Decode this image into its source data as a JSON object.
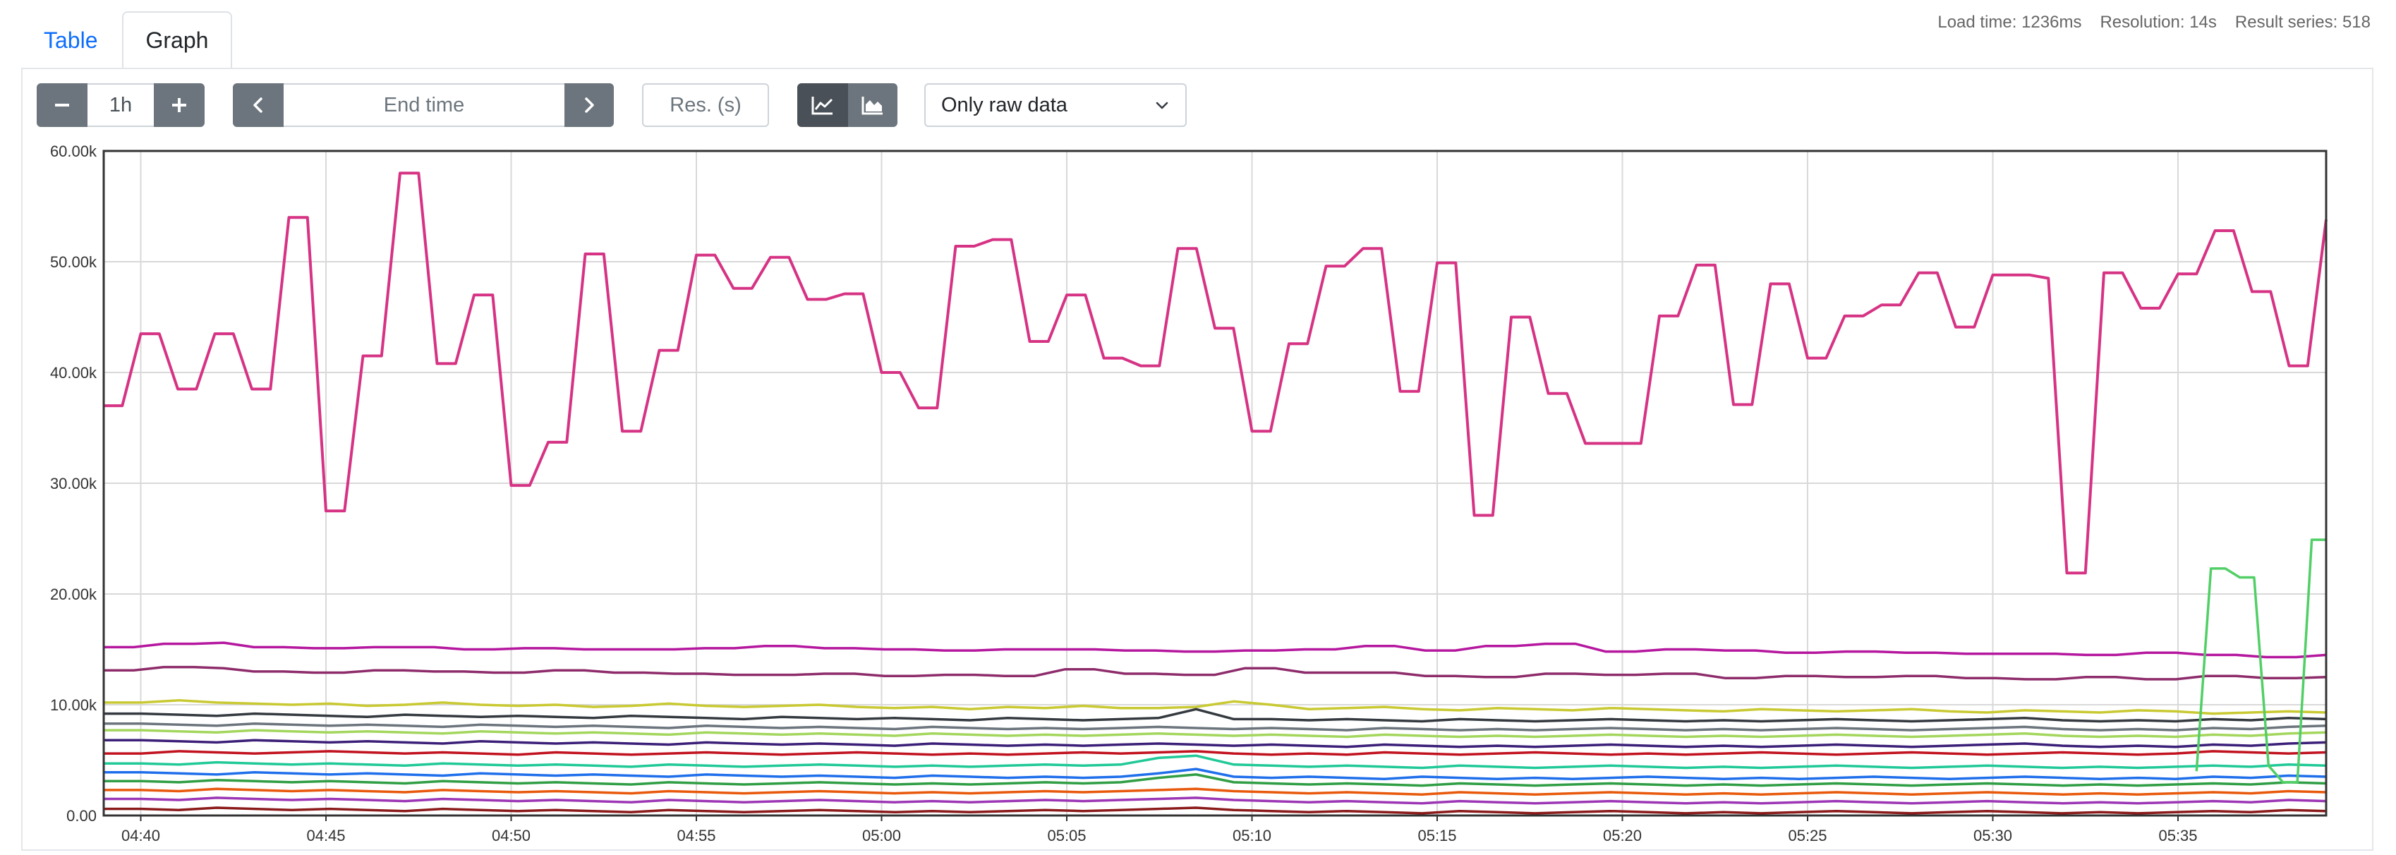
{
  "tabs": [
    {
      "label": "Table"
    },
    {
      "label": "Graph"
    }
  ],
  "stats": {
    "load_time": "Load time: 1236ms",
    "resolution": "Resolution: 14s",
    "result_series": "Result series: 518"
  },
  "controls": {
    "range_value": "1h",
    "end_time_placeholder": "End time",
    "resolution_placeholder": "Res. (s)",
    "stacked_mode": "Only raw data",
    "icons": [
      "minus-icon",
      "plus-icon",
      "chevron-left-icon",
      "chevron-right-icon",
      "line-chart-icon",
      "area-chart-icon",
      "chevron-down-icon"
    ]
  },
  "chart_data": {
    "type": "line",
    "ylim": [
      0,
      60000
    ],
    "y_ticks": [
      "60.00k",
      "50.00k",
      "40.00k",
      "30.00k",
      "20.00k",
      "10.00k",
      "0.00"
    ],
    "x_ticks": [
      "04:40",
      "04:45",
      "04:50",
      "04:55",
      "05:00",
      "05:05",
      "05:10",
      "05:15",
      "05:20",
      "05:25",
      "05:30",
      "05:35"
    ],
    "x_range_minutes": [
      0,
      60
    ],
    "x_tick_offset_minutes": 1,
    "grid": true,
    "legend": "none",
    "series": [
      {
        "color": "#d63384",
        "values": [
          37000,
          37000,
          43500,
          43500,
          38500,
          38500,
          43500,
          43500,
          38500,
          38500,
          54000,
          54000,
          27500,
          27500,
          41500,
          41500,
          58000,
          58000,
          40800,
          40800,
          47000,
          47000,
          29800,
          29800,
          33700,
          33700,
          50700,
          50700,
          34700,
          34700,
          42000,
          42000,
          50600,
          50600,
          47600,
          47600,
          50400,
          50400,
          46600,
          46600,
          47100,
          47100,
          40000,
          40000,
          36800,
          36800,
          51400,
          51400,
          52000,
          52000,
          42800,
          42800,
          47000,
          47000,
          41300,
          41300,
          40600,
          40600,
          51200,
          51200,
          44000,
          44000,
          34700,
          34700,
          42600,
          42600,
          49600,
          49600,
          51200,
          51200,
          38300,
          38300,
          49900,
          49900,
          27100,
          27100,
          45000,
          45000,
          38100,
          38100,
          33600,
          33600,
          33600,
          33600,
          45100,
          45100,
          49700,
          49700,
          37100,
          37100,
          48000,
          48000,
          41300,
          41300,
          45100,
          45100,
          46100,
          46100,
          49000,
          49000,
          44100,
          44100,
          48800,
          48800,
          48800,
          48500,
          21900,
          21900,
          49000,
          49000,
          45800,
          45800,
          48900,
          48900,
          52800,
          52800,
          47300,
          47300,
          40600,
          40600,
          53800
        ]
      },
      {
        "color": "#b5179e",
        "values": [
          15200,
          15200,
          15500,
          15500,
          15600,
          15200,
          15200,
          15100,
          15100,
          15200,
          15200,
          15200,
          15000,
          15000,
          15100,
          15100,
          15000,
          15000,
          15000,
          15000,
          15100,
          15100,
          15300,
          15300,
          15100,
          15100,
          15000,
          15000,
          14900,
          14900,
          15000,
          15000,
          15000,
          15000,
          14900,
          14900,
          14800,
          14800,
          14900,
          14900,
          15000,
          15000,
          15300,
          15300,
          14900,
          14900,
          15300,
          15300,
          15500,
          15500,
          14800,
          14800,
          15000,
          15000,
          14900,
          14900,
          14700,
          14700,
          14800,
          14800,
          14700,
          14700,
          14600,
          14600,
          14600,
          14600,
          14500,
          14500,
          14700,
          14700,
          14500,
          14500,
          14300,
          14300,
          14500
        ]
      },
      {
        "color": "#8e2c6b",
        "values": [
          13100,
          13100,
          13400,
          13400,
          13300,
          13000,
          13000,
          12900,
          12900,
          13100,
          13100,
          13000,
          13000,
          12900,
          12900,
          13100,
          13100,
          12900,
          12900,
          12800,
          12800,
          12700,
          12700,
          12700,
          12800,
          12800,
          12600,
          12600,
          12700,
          12700,
          12600,
          12600,
          13200,
          13200,
          12800,
          12800,
          12700,
          12700,
          13300,
          13300,
          12900,
          12900,
          12900,
          12900,
          12600,
          12600,
          12500,
          12500,
          12800,
          12800,
          12700,
          12700,
          12800,
          12800,
          12400,
          12400,
          12600,
          12600,
          12500,
          12500,
          12600,
          12600,
          12400,
          12400,
          12300,
          12300,
          12500,
          12500,
          12300,
          12300,
          12600,
          12600,
          12400,
          12400,
          12500
        ]
      },
      {
        "color": "#c9c933",
        "values": [
          10200,
          10200,
          10400,
          10200,
          10100,
          10000,
          10100,
          9900,
          10000,
          10200,
          10000,
          9900,
          10000,
          9800,
          9900,
          10100,
          9900,
          9800,
          9900,
          10000,
          9800,
          9700,
          9800,
          9600,
          9800,
          9700,
          9900,
          9700,
          9700,
          9800,
          10300,
          10000,
          9600,
          9700,
          9800,
          9600,
          9500,
          9700,
          9600,
          9500,
          9700,
          9600,
          9500,
          9400,
          9600,
          9500,
          9400,
          9500,
          9600,
          9400,
          9300,
          9500,
          9400,
          9300,
          9500,
          9400,
          9200,
          9300,
          9400,
          9300
        ]
      },
      {
        "color": "#343a40",
        "values": [
          9200,
          9200,
          9100,
          9000,
          9200,
          9100,
          9000,
          8900,
          9100,
          9000,
          8900,
          9000,
          8900,
          8800,
          9000,
          8900,
          8800,
          8700,
          8900,
          8800,
          8700,
          8800,
          8700,
          8600,
          8800,
          8700,
          8600,
          8700,
          8800,
          9600,
          8700,
          8700,
          8600,
          8700,
          8600,
          8500,
          8700,
          8600,
          8500,
          8600,
          8700,
          8600,
          8500,
          8600,
          8500,
          8600,
          8700,
          8600,
          8500,
          8600,
          8700,
          8800,
          8600,
          8500,
          8600,
          8500,
          8700,
          8600,
          8800,
          8700
        ]
      },
      {
        "color": "#6c757d",
        "values": [
          8300,
          8300,
          8200,
          8100,
          8300,
          8200,
          8100,
          8200,
          8100,
          8000,
          8200,
          8100,
          8000,
          8100,
          8000,
          7900,
          8100,
          8000,
          7900,
          8000,
          7900,
          7800,
          8000,
          7900,
          7800,
          7900,
          7800,
          7900,
          8000,
          7900,
          7800,
          7900,
          7800,
          7700,
          7900,
          7800,
          7700,
          7800,
          7700,
          7800,
          7900,
          7800,
          7700,
          7800,
          7700,
          7800,
          7900,
          7800,
          7700,
          7800,
          7900,
          8000,
          7800,
          7700,
          7800,
          7700,
          7900,
          7800,
          8000,
          8100
        ]
      },
      {
        "color": "#a3d65c",
        "values": [
          7700,
          7700,
          7600,
          7500,
          7700,
          7600,
          7500,
          7600,
          7500,
          7400,
          7600,
          7500,
          7400,
          7500,
          7400,
          7300,
          7500,
          7400,
          7300,
          7400,
          7300,
          7200,
          7400,
          7300,
          7200,
          7300,
          7200,
          7300,
          7400,
          7300,
          7200,
          7300,
          7200,
          7100,
          7300,
          7200,
          7100,
          7200,
          7100,
          7200,
          7300,
          7200,
          7100,
          7200,
          7100,
          7200,
          7300,
          7200,
          7100,
          7200,
          7300,
          7400,
          7200,
          7100,
          7200,
          7100,
          7300,
          7200,
          7400,
          7500
        ]
      },
      {
        "color": "#3b1f78",
        "values": [
          6800,
          6800,
          6700,
          6600,
          6800,
          6700,
          6600,
          6700,
          6600,
          6500,
          6700,
          6600,
          6500,
          6600,
          6500,
          6400,
          6600,
          6500,
          6400,
          6500,
          6400,
          6300,
          6500,
          6400,
          6300,
          6400,
          6300,
          6400,
          6500,
          6400,
          6300,
          6400,
          6300,
          6200,
          6400,
          6300,
          6200,
          6300,
          6200,
          6300,
          6400,
          6300,
          6200,
          6300,
          6200,
          6300,
          6400,
          6300,
          6200,
          6300,
          6400,
          6500,
          6300,
          6200,
          6300,
          6200,
          6400,
          6300,
          6500,
          6600
        ]
      },
      {
        "color": "#c1121f",
        "values": [
          5600,
          5600,
          5800,
          5700,
          5600,
          5700,
          5800,
          5700,
          5600,
          5700,
          5600,
          5500,
          5700,
          5600,
          5500,
          5600,
          5700,
          5600,
          5500,
          5600,
          5700,
          5600,
          5500,
          5600,
          5500,
          5600,
          5700,
          5600,
          5700,
          5800,
          5600,
          5500,
          5600,
          5500,
          5700,
          5600,
          5500,
          5600,
          5700,
          5600,
          5500,
          5600,
          5500,
          5600,
          5700,
          5600,
          5500,
          5600,
          5700,
          5600,
          5500,
          5600,
          5700,
          5600,
          5500,
          5600,
          5800,
          5700,
          5600,
          5700
        ]
      },
      {
        "color": "#20c997",
        "values": [
          4700,
          4700,
          4600,
          4800,
          4700,
          4600,
          4700,
          4600,
          4500,
          4700,
          4600,
          4500,
          4600,
          4500,
          4400,
          4600,
          4500,
          4400,
          4500,
          4600,
          4500,
          4400,
          4500,
          4400,
          4500,
          4600,
          4500,
          4600,
          5200,
          5400,
          4600,
          4500,
          4400,
          4500,
          4400,
          4300,
          4500,
          4400,
          4300,
          4400,
          4500,
          4400,
          4300,
          4400,
          4300,
          4400,
          4500,
          4400,
          4300,
          4400,
          4500,
          4400,
          4300,
          4400,
          4300,
          4400,
          4500,
          4400,
          4600,
          4500
        ]
      },
      {
        "color": "#1f6feb",
        "values": [
          3900,
          3900,
          3800,
          3700,
          3900,
          3800,
          3700,
          3800,
          3700,
          3600,
          3800,
          3700,
          3600,
          3700,
          3600,
          3500,
          3700,
          3600,
          3500,
          3600,
          3500,
          3400,
          3600,
          3500,
          3400,
          3500,
          3400,
          3500,
          3800,
          4200,
          3500,
          3400,
          3500,
          3400,
          3300,
          3500,
          3400,
          3300,
          3400,
          3300,
          3400,
          3500,
          3400,
          3300,
          3400,
          3300,
          3400,
          3500,
          3400,
          3300,
          3400,
          3500,
          3400,
          3300,
          3400,
          3300,
          3500,
          3400,
          3600,
          3500
        ]
      },
      {
        "color": "#2f9e44",
        "values": [
          3100,
          3100,
          3000,
          3200,
          3100,
          3000,
          3100,
          3000,
          2900,
          3100,
          3000,
          2900,
          3000,
          2900,
          2800,
          3000,
          2900,
          2800,
          2900,
          3000,
          2900,
          2800,
          2900,
          2800,
          2900,
          3000,
          2900,
          3000,
          3400,
          3700,
          3000,
          2900,
          2800,
          2900,
          2800,
          2700,
          2900,
          2800,
          2700,
          2800,
          2900,
          2800,
          2700,
          2800,
          2700,
          2800,
          2900,
          2800,
          2700,
          2800,
          2900,
          2800,
          2700,
          2800,
          2700,
          2800,
          2900,
          2800,
          3000,
          2900
        ]
      },
      {
        "color": "#e8590c",
        "values": [
          2300,
          2300,
          2200,
          2400,
          2300,
          2200,
          2300,
          2200,
          2100,
          2300,
          2200,
          2100,
          2200,
          2100,
          2000,
          2200,
          2100,
          2000,
          2100,
          2200,
          2100,
          2000,
          2100,
          2000,
          2100,
          2200,
          2100,
          2200,
          2300,
          2400,
          2200,
          2100,
          2000,
          2100,
          2000,
          1900,
          2100,
          2000,
          1900,
          2000,
          2100,
          2000,
          1900,
          2000,
          1900,
          2000,
          2100,
          2000,
          1900,
          2000,
          2100,
          2000,
          1900,
          2000,
          1900,
          2000,
          2100,
          2000,
          2200,
          2100
        ]
      },
      {
        "color": "#9c36b5",
        "values": [
          1500,
          1500,
          1400,
          1600,
          1500,
          1400,
          1500,
          1400,
          1300,
          1500,
          1400,
          1300,
          1400,
          1300,
          1200,
          1400,
          1300,
          1200,
          1300,
          1400,
          1300,
          1200,
          1300,
          1200,
          1300,
          1400,
          1300,
          1400,
          1500,
          1600,
          1400,
          1300,
          1200,
          1300,
          1200,
          1100,
          1300,
          1200,
          1100,
          1200,
          1300,
          1200,
          1100,
          1200,
          1100,
          1200,
          1300,
          1200,
          1100,
          1200,
          1300,
          1200,
          1100,
          1200,
          1100,
          1200,
          1300,
          1200,
          1400,
          1300
        ]
      },
      {
        "color": "#8b1a1a",
        "values": [
          600,
          600,
          500,
          700,
          600,
          500,
          600,
          500,
          400,
          600,
          500,
          400,
          500,
          400,
          300,
          500,
          400,
          300,
          400,
          500,
          400,
          300,
          400,
          300,
          400,
          500,
          400,
          500,
          600,
          700,
          500,
          400,
          300,
          400,
          300,
          200,
          400,
          300,
          200,
          300,
          400,
          300,
          200,
          300,
          200,
          300,
          400,
          300,
          200,
          300,
          400,
          300,
          200,
          300,
          200,
          300,
          400,
          300,
          500,
          400
        ]
      },
      {
        "color": "#51cf66",
        "x_window_minutes": [
          56.5,
          60
        ],
        "values": [
          4000,
          22300,
          22300,
          21500,
          21500,
          4500,
          3000,
          3000,
          24900,
          24900
        ]
      }
    ]
  }
}
